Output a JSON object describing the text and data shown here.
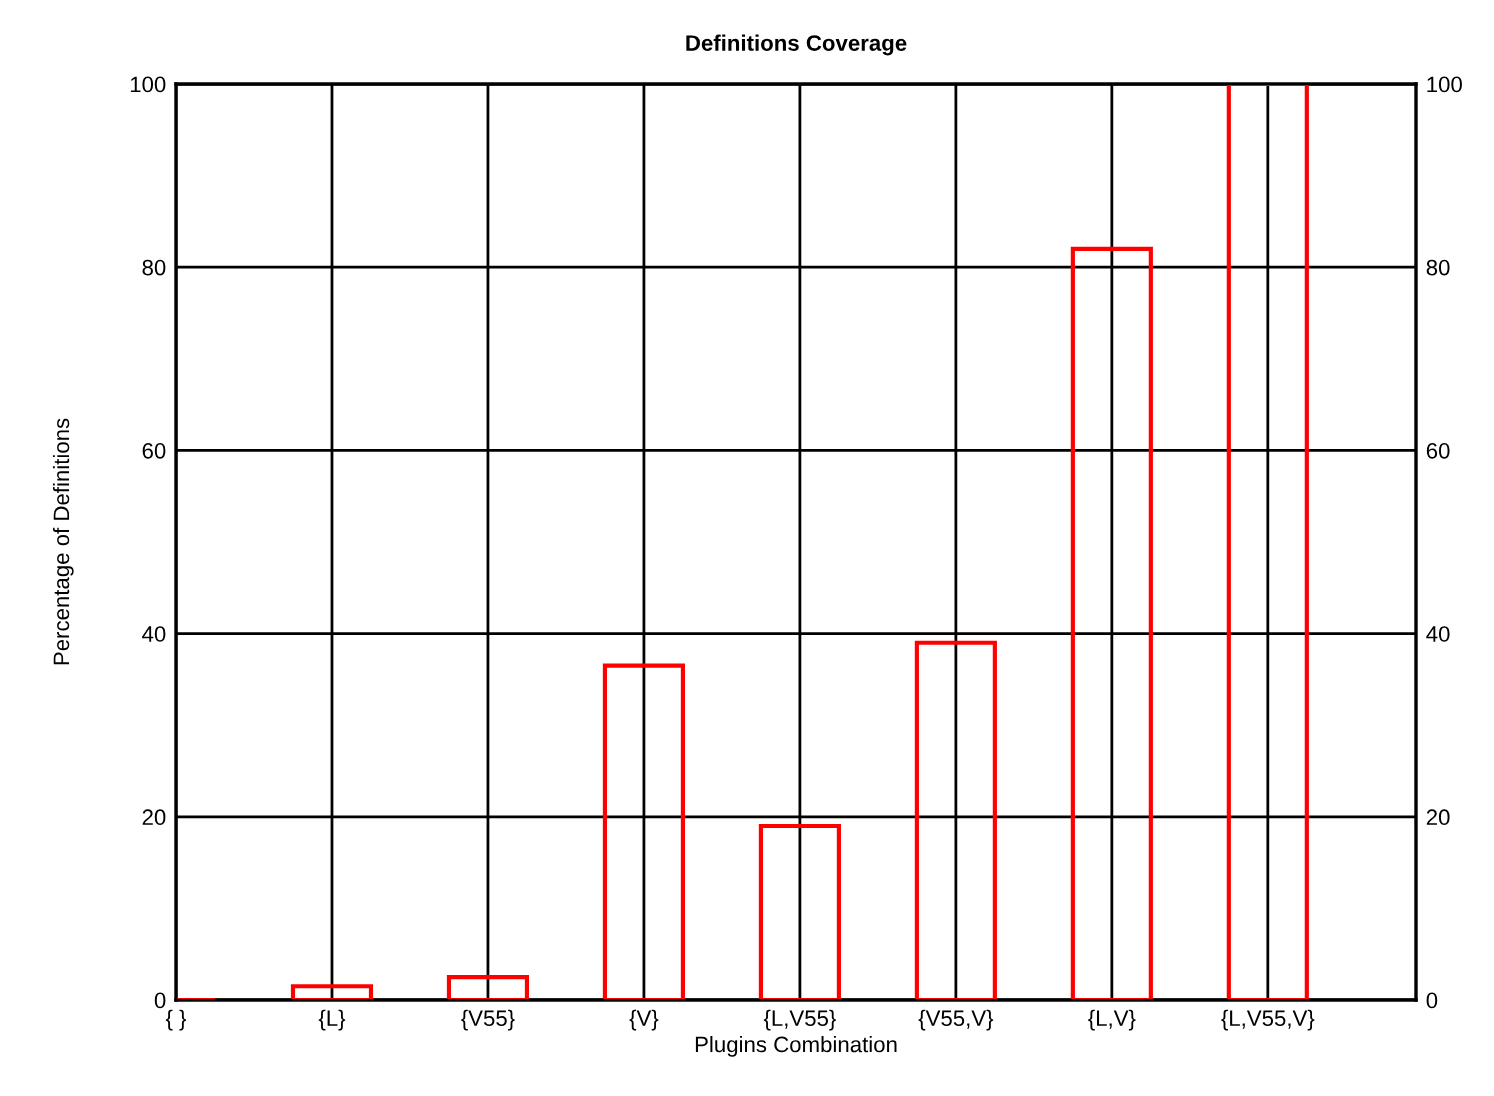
{
  "chart_data": {
    "type": "bar",
    "title": "Definitions Coverage",
    "xlabel": "Plugins Combination",
    "ylabel": "Percentage of Definitions",
    "categories": [
      "{ }",
      "{L}",
      "{V55}",
      "{V}",
      "{L,V55}",
      "{V55,V}",
      "{L,V}",
      "{L,V55,V}"
    ],
    "series": [
      {
        "color": "#ff0000",
        "values": [
          0,
          1.5,
          2.5,
          36.5,
          19,
          39,
          82,
          100
        ]
      }
    ],
    "ylim": [
      0,
      100
    ],
    "yticks": [
      0,
      20,
      40,
      60,
      80,
      100
    ],
    "y2lim": [
      0,
      100
    ],
    "y2ticks": [
      0,
      20,
      40,
      60,
      80,
      100
    ],
    "grid": true
  }
}
